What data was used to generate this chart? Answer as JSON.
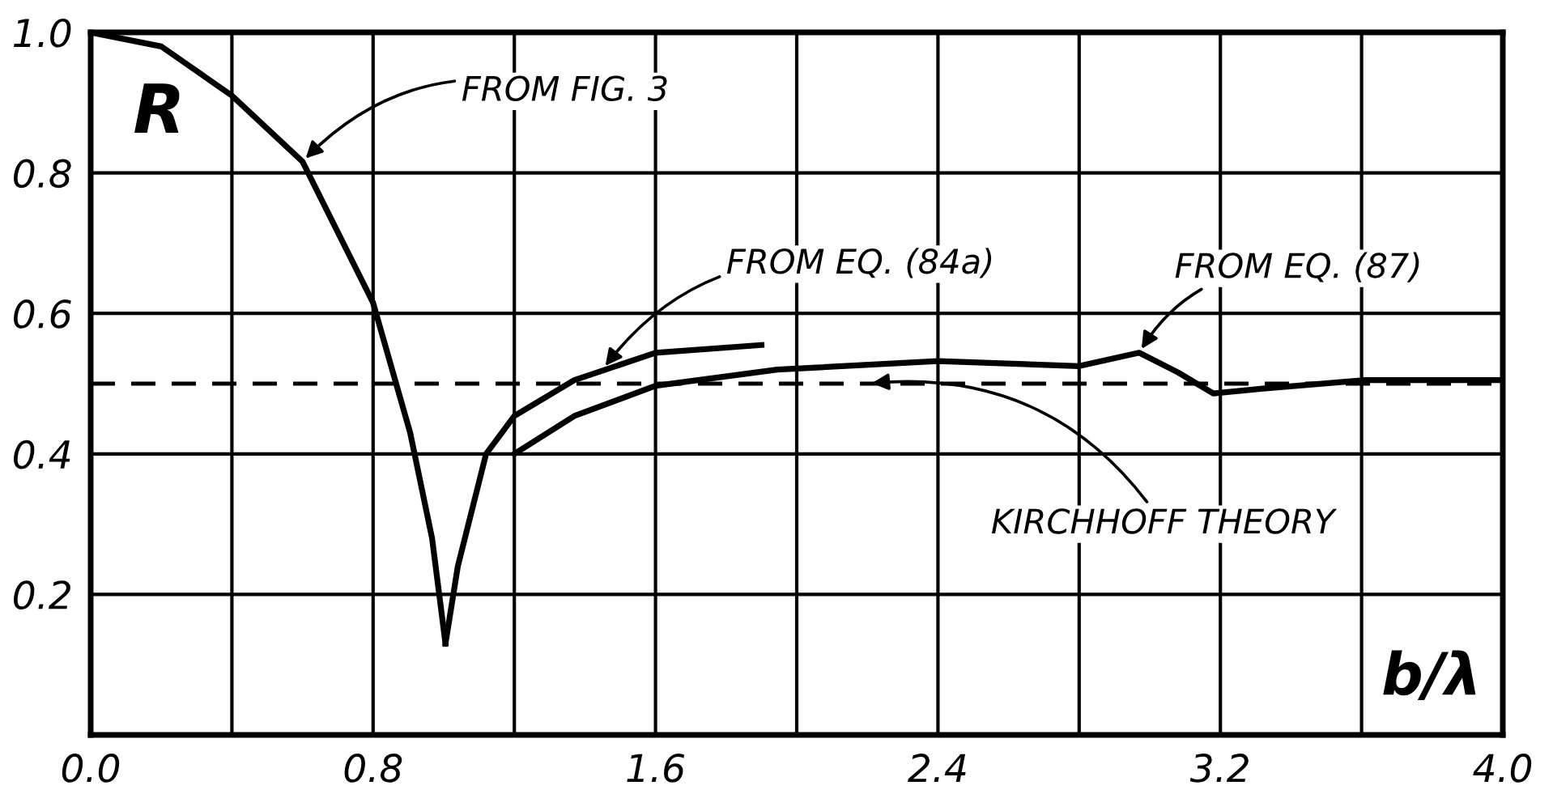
{
  "chart_data": {
    "type": "line",
    "xlabel": "b/λ",
    "ylabel": "R",
    "xlim": [
      0.0,
      4.0
    ],
    "ylim": [
      0.0,
      1.0
    ],
    "xticks": [
      {
        "value": 0,
        "label": "0.0"
      },
      {
        "value": 0.4,
        "label": null
      },
      0.8,
      {
        "value": 1.2,
        "label": null
      },
      1.6,
      {
        "value": 2.0,
        "label": null
      },
      2.4,
      {
        "value": 2.8,
        "label": null
      },
      3.2,
      {
        "value": 3.6,
        "label": null
      },
      {
        "value": 4,
        "label": "4.0"
      }
    ],
    "yticks": [
      0.2,
      0.4,
      0.6,
      0.8,
      {
        "value": 1,
        "label": "1.0"
      }
    ],
    "grid": true,
    "line_style": "solid",
    "marker": "none",
    "series": [
      {
        "color": "#000000",
        "x": [
          0.0,
          0.2,
          0.4,
          0.6,
          0.8,
          0.905,
          0.967,
          1.005
        ],
        "values": [
          1.0,
          0.98,
          0.91,
          0.816,
          0.615,
          0.43,
          0.28,
          0.13
        ]
      },
      {
        "color": "#000000",
        "x": [
          1.005,
          1.04,
          1.12,
          1.2,
          1.37,
          1.6,
          1.9
        ],
        "values": [
          0.13,
          0.24,
          0.4,
          0.454,
          0.505,
          0.544,
          0.555
        ]
      },
      {
        "color": "#000000",
        "x": [
          1.2,
          1.37,
          1.6,
          1.945,
          2.4,
          2.8,
          2.97,
          3.08,
          3.18,
          3.32,
          3.61,
          4.0
        ],
        "values": [
          0.4,
          0.454,
          0.497,
          0.52,
          0.532,
          0.525,
          0.544,
          0.516,
          0.486,
          0.493,
          0.505,
          0.505
        ]
      }
    ],
    "ref_lines": [
      {
        "axis": "y",
        "value": 0.5,
        "line_style": "dashed",
        "color": "#000000"
      }
    ],
    "annotations": [
      {
        "text": "FROM FIG. 3",
        "x": 0.6,
        "y": 0.816
      },
      {
        "text": "FROM EQ. (84a)",
        "x": 1.45,
        "y": 0.52
      },
      {
        "text": "FROM EQ. (87)",
        "x": 2.97,
        "y": 0.544
      },
      {
        "text": "KIRCHHOFF THEORY",
        "x": 2.2,
        "y": 0.5
      }
    ]
  }
}
